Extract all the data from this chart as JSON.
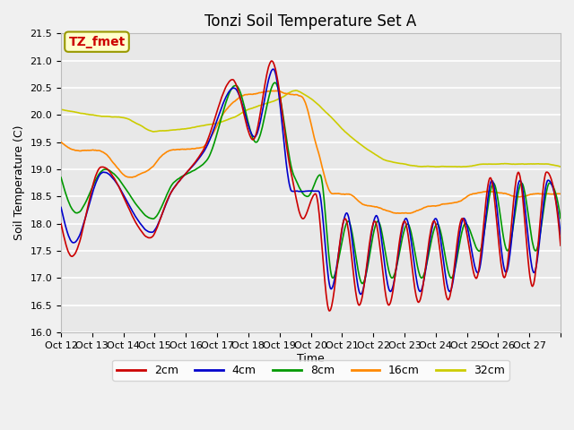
{
  "title": "Tonzi Soil Temperature Set A",
  "xlabel": "Time",
  "ylabel": "Soil Temperature (C)",
  "ylim": [
    16.0,
    21.5
  ],
  "series_colors": {
    "2cm": "#cc0000",
    "4cm": "#0000cc",
    "8cm": "#009900",
    "16cm": "#ff8800",
    "32cm": "#cccc00"
  },
  "annotation_text": "TZ_fmet",
  "annotation_color": "#cc0000",
  "annotation_bg": "#ffffcc",
  "annotation_border": "#999900",
  "fig_bg": "#f5f5f5",
  "plot_bg": "#e8e8e8",
  "grid_color": "#ffffff",
  "title_fontsize": 12,
  "axis_label_fontsize": 9,
  "tick_fontsize": 8,
  "x_tick_labels": [
    "Oct 12",
    "Oct 13",
    "Oct 14",
    "Oct 15",
    "Oct 16",
    "Oct 17",
    "Oct 18",
    "Oct 19",
    "Oct 20",
    "Oct 21",
    "Oct 22",
    "Oct 23",
    "Oct 24",
    "Oct 25",
    "Oct 26",
    "Oct 27"
  ]
}
